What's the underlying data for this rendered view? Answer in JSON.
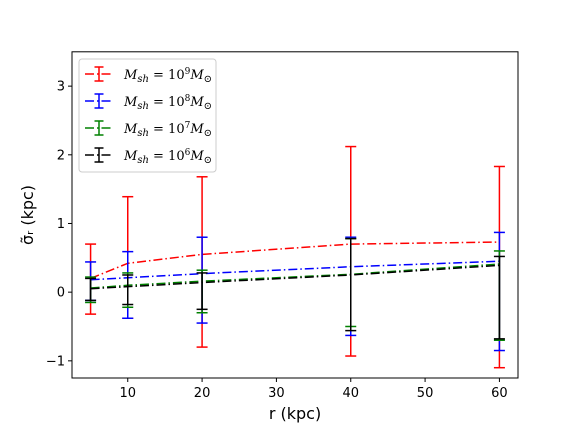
{
  "chart_data": {
    "type": "line",
    "title": "",
    "xlabel": "r (kpc)",
    "ylabel": "σ̃ᵣ (kpc)",
    "xlim": [
      2.5,
      62.5
    ],
    "ylim": [
      -1.25,
      3.5
    ],
    "xticks": [
      10,
      20,
      30,
      40,
      50,
      60
    ],
    "yticks": [
      -1,
      0,
      1,
      2,
      3
    ],
    "grid": false,
    "legend_position": "top-left",
    "x": [
      5,
      10,
      20,
      40,
      60
    ],
    "series": [
      {
        "name": "M_sh = 10^9 M_⊙",
        "name_base": "M",
        "name_sub": "sh",
        "name_exp": "9",
        "color": "#ff0000",
        "values": [
          0.2,
          0.42,
          0.55,
          0.7,
          0.73
        ],
        "err_low": [
          -0.32,
          -0.38,
          -0.8,
          -0.93,
          -1.1
        ],
        "err_high": [
          0.7,
          1.39,
          1.68,
          2.12,
          1.83
        ]
      },
      {
        "name": "M_sh = 10^8 M_⊙",
        "name_base": "M",
        "name_sub": "sh",
        "name_exp": "8",
        "color": "#0000ff",
        "values": [
          0.18,
          0.21,
          0.27,
          0.37,
          0.45
        ],
        "err_low": [
          -0.12,
          -0.38,
          -0.45,
          -0.63,
          -0.85
        ],
        "err_high": [
          0.44,
          0.59,
          0.8,
          0.8,
          0.87
        ]
      },
      {
        "name": "M_sh = 10^7 M_⊙",
        "name_base": "M",
        "name_sub": "sh",
        "name_exp": "7",
        "color": "#008000",
        "values": [
          0.06,
          0.1,
          0.16,
          0.26,
          0.41
        ],
        "err_low": [
          -0.15,
          -0.22,
          -0.3,
          -0.5,
          -0.7
        ],
        "err_high": [
          0.22,
          0.28,
          0.32,
          0.78,
          0.6
        ]
      },
      {
        "name": "M_sh = 10^6 M_⊙",
        "name_base": "M",
        "name_sub": "sh",
        "name_exp": "6",
        "color": "#000000",
        "values": [
          0.05,
          0.08,
          0.14,
          0.25,
          0.39
        ],
        "err_low": [
          -0.12,
          -0.18,
          -0.25,
          -0.56,
          -0.68
        ],
        "err_high": [
          0.2,
          0.25,
          0.28,
          0.78,
          0.52
        ]
      }
    ]
  }
}
